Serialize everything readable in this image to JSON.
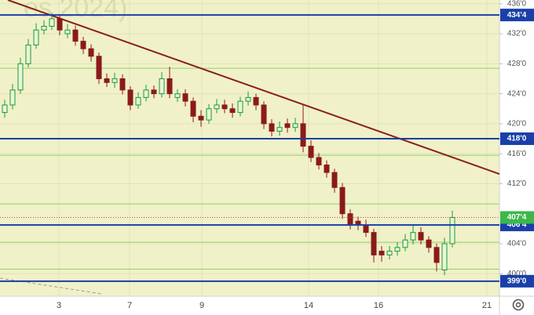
{
  "chart_data": {
    "type": "candlestick",
    "watermark": "es 2024)",
    "x": [
      0,
      1,
      2,
      3,
      4,
      5,
      6,
      7,
      8,
      9,
      10,
      11,
      12,
      13,
      14,
      15,
      16,
      17,
      18,
      19,
      20,
      21,
      22,
      23,
      24,
      25,
      26,
      27,
      28,
      29,
      30,
      31,
      32,
      33,
      34,
      35,
      36,
      37,
      38,
      39,
      40,
      41,
      42,
      43,
      44,
      45,
      46,
      47,
      48,
      49,
      50,
      51,
      52,
      53,
      54,
      55,
      56,
      57
    ],
    "open": [
      421.5,
      422.5,
      424.5,
      428,
      430.5,
      432.5,
      433,
      434,
      432,
      432.5,
      431,
      430,
      429,
      426,
      425.5,
      426,
      424.5,
      422.5,
      423.5,
      424.5,
      424,
      426,
      423.5,
      424,
      423,
      421,
      420.5,
      422,
      422.5,
      422,
      421.5,
      423,
      423.5,
      422.5,
      420,
      419,
      420,
      419.5,
      420,
      417,
      415.5,
      414.5,
      413.5,
      411.5,
      408,
      407,
      406.5,
      405.5,
      403,
      402.5,
      403,
      403.5,
      404.5,
      405.5,
      404.5,
      403.5,
      400.5,
      404
    ],
    "high": [
      423.2,
      425.3,
      428.8,
      431.3,
      433.4,
      433.8,
      434.8,
      434.6,
      433.3,
      433.1,
      431.6,
      430.6,
      429.5,
      426.7,
      426.8,
      426.6,
      425,
      424.2,
      425.2,
      425.1,
      426.9,
      427.6,
      424.6,
      424.6,
      423.5,
      421.8,
      422.6,
      423.3,
      423.2,
      422.7,
      423.6,
      424.3,
      424,
      423,
      420.6,
      420.3,
      420.7,
      420.8,
      422.5,
      417.8,
      416.1,
      415.1,
      414,
      412.1,
      408.6,
      407.6,
      407.2,
      406,
      403.7,
      403.7,
      404.2,
      405.3,
      406.5,
      406.2,
      405,
      404,
      404.8,
      408.4
    ],
    "low": [
      420.8,
      421.9,
      424,
      427.5,
      430,
      431.9,
      432.5,
      431.8,
      431.4,
      430.4,
      429.3,
      428.3,
      425.3,
      424.9,
      424.8,
      423.9,
      421.8,
      422,
      423,
      423.4,
      423.5,
      423.4,
      422.9,
      422.3,
      420.2,
      419.6,
      420,
      421.4,
      421.4,
      420.8,
      421,
      422.4,
      421.8,
      419.3,
      418.3,
      418.4,
      418.8,
      418.9,
      416.2,
      414.9,
      413.9,
      412.8,
      410.8,
      407.3,
      405.9,
      405.8,
      404.9,
      401.5,
      401.6,
      401.9,
      402.4,
      403,
      403.9,
      403.9,
      402.8,
      400.3,
      399.8,
      403.5
    ],
    "close": [
      422.5,
      424.5,
      428,
      430.5,
      432.5,
      433,
      434,
      432.5,
      432.5,
      431,
      430,
      429,
      426,
      425.5,
      426,
      424.5,
      422.5,
      423.5,
      424.5,
      424,
      426,
      424,
      424,
      423,
      421,
      420.5,
      422,
      422.5,
      422,
      421.5,
      423,
      423.5,
      422.5,
      420,
      419,
      419.5,
      419.5,
      420,
      417,
      415.5,
      414.5,
      413.5,
      411.5,
      408,
      406.5,
      406.5,
      405.5,
      402.5,
      402.5,
      403,
      403.5,
      404.5,
      405.5,
      404.5,
      403.5,
      401.5,
      404,
      407.5
    ],
    "up_color": "#1e9a3a",
    "down_color": "#8b1a1a",
    "xlim": [
      -0.6,
      63
    ],
    "ylim": [
      397.0,
      436.5
    ],
    "xticks": [
      {
        "value": 6.9,
        "label": "3"
      },
      {
        "value": 15.9,
        "label": "7"
      },
      {
        "value": 25.1,
        "label": "9"
      },
      {
        "value": 38.7,
        "label": "14"
      },
      {
        "value": 47.6,
        "label": "16"
      },
      {
        "value": 61.4,
        "label": "21"
      }
    ],
    "yticks": [
      {
        "value": 436,
        "label": "436'0"
      },
      {
        "value": 432,
        "label": "432'0"
      },
      {
        "value": 428,
        "label": "428'0"
      },
      {
        "value": 424,
        "label": "424'0"
      },
      {
        "value": 420,
        "label": "420'0"
      },
      {
        "value": 416,
        "label": "416'0"
      },
      {
        "value": 412,
        "label": "412'0"
      },
      {
        "value": 404,
        "label": "404'0"
      },
      {
        "value": 400,
        "label": "400'0"
      }
    ],
    "grid": true,
    "levels": [
      {
        "value": 434.5,
        "label": "434'4"
      },
      {
        "value": 418,
        "label": "418'0"
      },
      {
        "value": 406.5,
        "label": "406'4"
      },
      {
        "value": 399,
        "label": "399'0"
      }
    ],
    "level_color": "#1a3fa8",
    "support_lines": {
      "color": "#8fd16a",
      "values": [
        427.4,
        415.8,
        409.3,
        404.2,
        400.6
      ]
    },
    "last_price": {
      "value": 407.5,
      "label": "407'4",
      "color": "#3cb84a",
      "line_color": "#d04040"
    },
    "trend_line": {
      "color": "#8b1f1f",
      "x": [
        0.4,
        63
      ],
      "y": [
        436.5,
        413.3
      ]
    },
    "dashed_line": {
      "color": "#9a9a9a",
      "x": [
        -0.6,
        12.4
      ],
      "y": [
        399.4,
        397.3
      ]
    }
  }
}
